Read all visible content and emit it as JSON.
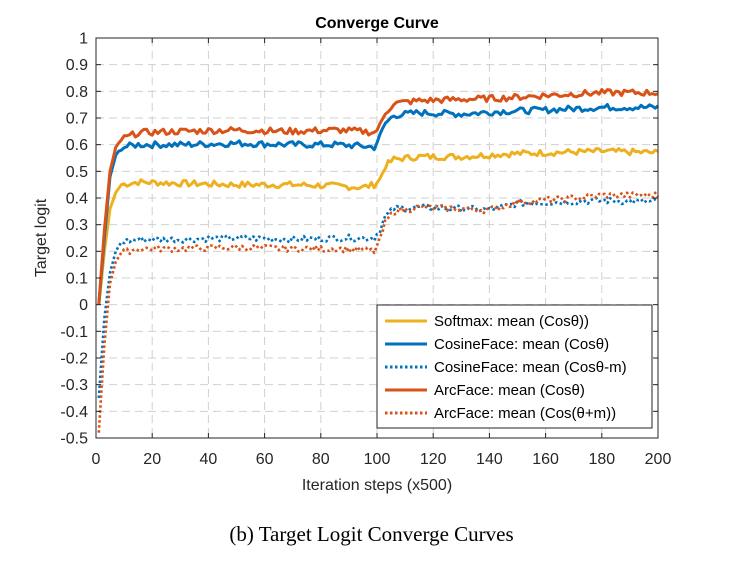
{
  "chart_data": {
    "type": "line",
    "title": "Converge Curve",
    "xlabel": "Iteration steps (x500)",
    "ylabel": "Target logit",
    "xlim": [
      0,
      200
    ],
    "ylim": [
      -0.5,
      1
    ],
    "xticks": [
      0,
      20,
      40,
      60,
      80,
      100,
      120,
      140,
      160,
      180,
      200
    ],
    "xtick_labels": [
      "0",
      "20",
      "40",
      "60",
      "80",
      "100",
      "120",
      "140",
      "160",
      "180",
      "200"
    ],
    "yticks": [
      -0.5,
      -0.4,
      -0.3,
      -0.2,
      -0.1,
      0,
      0.1,
      0.2,
      0.3,
      0.4,
      0.5,
      0.6,
      0.7,
      0.8,
      0.9,
      1
    ],
    "ytick_labels": [
      "-0.5",
      "-0.4",
      "-0.3",
      "-0.2",
      "-0.1",
      "0",
      "0.1",
      "0.2",
      "0.3",
      "0.4",
      "0.5",
      "0.6",
      "0.7",
      "0.8",
      "0.9",
      "1"
    ],
    "grid": true,
    "legend_position": "bottom-right",
    "series": [
      {
        "name": "Softmax: mean (Cosθ))",
        "color": "#EDB120",
        "style": "solid",
        "keypoints": [
          [
            1,
            0
          ],
          [
            3,
            0.2
          ],
          [
            5,
            0.36
          ],
          [
            7,
            0.42
          ],
          [
            9,
            0.45
          ],
          [
            15,
            0.46
          ],
          [
            30,
            0.455
          ],
          [
            50,
            0.45
          ],
          [
            70,
            0.45
          ],
          [
            85,
            0.445
          ],
          [
            95,
            0.44
          ],
          [
            99,
            0.45
          ],
          [
            101,
            0.47
          ],
          [
            103,
            0.52
          ],
          [
            106,
            0.545
          ],
          [
            115,
            0.555
          ],
          [
            130,
            0.555
          ],
          [
            145,
            0.565
          ],
          [
            160,
            0.57
          ],
          [
            180,
            0.575
          ],
          [
            200,
            0.57
          ]
        ]
      },
      {
        "name": "CosineFace: mean (Cosθ)",
        "color": "#0072BD",
        "style": "solid",
        "keypoints": [
          [
            1,
            0
          ],
          [
            3,
            0.25
          ],
          [
            5,
            0.48
          ],
          [
            7,
            0.56
          ],
          [
            9,
            0.59
          ],
          [
            15,
            0.6
          ],
          [
            30,
            0.6
          ],
          [
            50,
            0.605
          ],
          [
            70,
            0.6
          ],
          [
            85,
            0.6
          ],
          [
            95,
            0.595
          ],
          [
            99,
            0.59
          ],
          [
            101,
            0.63
          ],
          [
            103,
            0.68
          ],
          [
            106,
            0.71
          ],
          [
            115,
            0.72
          ],
          [
            130,
            0.715
          ],
          [
            145,
            0.725
          ],
          [
            160,
            0.73
          ],
          [
            180,
            0.74
          ],
          [
            200,
            0.74
          ]
        ]
      },
      {
        "name": "CosineFace: mean (Cosθ-m)",
        "color": "#0072BD",
        "style": "dotted",
        "keypoints": [
          [
            1,
            -0.35
          ],
          [
            3,
            -0.05
          ],
          [
            5,
            0.12
          ],
          [
            7,
            0.2
          ],
          [
            9,
            0.235
          ],
          [
            15,
            0.245
          ],
          [
            30,
            0.245
          ],
          [
            50,
            0.25
          ],
          [
            70,
            0.245
          ],
          [
            85,
            0.25
          ],
          [
            95,
            0.25
          ],
          [
            99,
            0.25
          ],
          [
            101,
            0.28
          ],
          [
            103,
            0.33
          ],
          [
            106,
            0.36
          ],
          [
            115,
            0.365
          ],
          [
            130,
            0.36
          ],
          [
            140,
            0.355
          ],
          [
            150,
            0.38
          ],
          [
            165,
            0.385
          ],
          [
            180,
            0.39
          ],
          [
            200,
            0.385
          ]
        ]
      },
      {
        "name": "ArcFace: mean (Cosθ)",
        "color": "#D95319",
        "style": "solid",
        "keypoints": [
          [
            1,
            0
          ],
          [
            3,
            0.28
          ],
          [
            5,
            0.5
          ],
          [
            7,
            0.59
          ],
          [
            9,
            0.62
          ],
          [
            15,
            0.645
          ],
          [
            30,
            0.65
          ],
          [
            50,
            0.655
          ],
          [
            70,
            0.65
          ],
          [
            85,
            0.655
          ],
          [
            95,
            0.65
          ],
          [
            99,
            0.645
          ],
          [
            101,
            0.67
          ],
          [
            103,
            0.72
          ],
          [
            106,
            0.755
          ],
          [
            115,
            0.765
          ],
          [
            130,
            0.77
          ],
          [
            145,
            0.775
          ],
          [
            160,
            0.785
          ],
          [
            180,
            0.795
          ],
          [
            200,
            0.795
          ]
        ]
      },
      {
        "name": "ArcFace: mean (Cos(θ+m))",
        "color": "#D95319",
        "style": "dotted",
        "keypoints": [
          [
            1,
            -0.48
          ],
          [
            3,
            -0.15
          ],
          [
            5,
            0.08
          ],
          [
            7,
            0.16
          ],
          [
            9,
            0.195
          ],
          [
            15,
            0.21
          ],
          [
            30,
            0.21
          ],
          [
            50,
            0.215
          ],
          [
            70,
            0.21
          ],
          [
            85,
            0.21
          ],
          [
            95,
            0.205
          ],
          [
            99,
            0.2
          ],
          [
            101,
            0.24
          ],
          [
            103,
            0.31
          ],
          [
            106,
            0.35
          ],
          [
            115,
            0.365
          ],
          [
            130,
            0.36
          ],
          [
            140,
            0.355
          ],
          [
            150,
            0.385
          ],
          [
            165,
            0.395
          ],
          [
            180,
            0.41
          ],
          [
            200,
            0.41
          ]
        ]
      }
    ]
  },
  "caption": "(b)  Target Logit Converge Curves"
}
